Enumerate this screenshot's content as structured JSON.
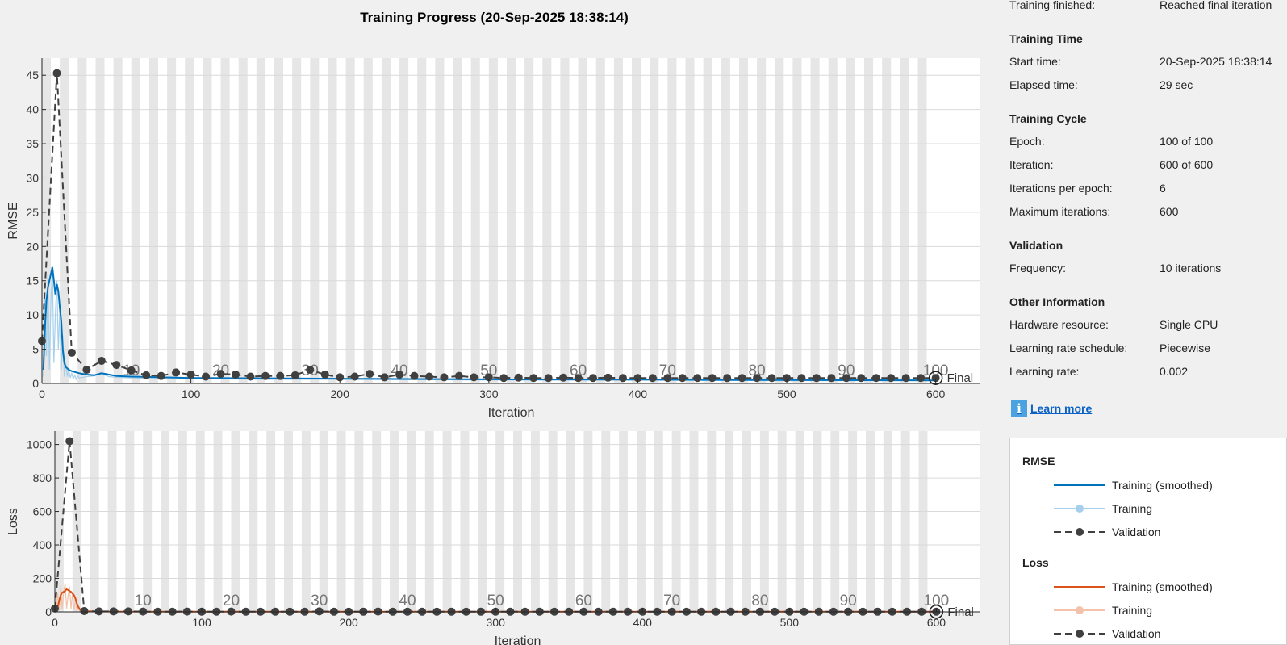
{
  "title": "Training Progress (20-Sep-2025 18:38:14)",
  "info": {
    "top_row": {
      "label": "Training finished:",
      "value": "Reached final iteration"
    },
    "sections": [
      {
        "heading": "Training Time",
        "rows": [
          {
            "label": "Start time:",
            "value": "20-Sep-2025 18:38:14"
          },
          {
            "label": "Elapsed time:",
            "value": "29 sec"
          }
        ]
      },
      {
        "heading": "Training Cycle",
        "rows": [
          {
            "label": "Epoch:",
            "value": "100 of 100"
          },
          {
            "label": "Iteration:",
            "value": "600 of 600"
          },
          {
            "label": "Iterations per epoch:",
            "value": "6"
          },
          {
            "label": "Maximum iterations:",
            "value": "600"
          }
        ]
      },
      {
        "heading": "Validation",
        "rows": [
          {
            "label": "Frequency:",
            "value": "10 iterations"
          }
        ]
      },
      {
        "heading": "Other Information",
        "rows": [
          {
            "label": "Hardware resource:",
            "value": "Single CPU"
          },
          {
            "label": "Learning rate schedule:",
            "value": "Piecewise"
          },
          {
            "label": "Learning rate:",
            "value": "0.002"
          }
        ]
      }
    ],
    "learn_more": "Learn more",
    "info_icon_glyph": "i"
  },
  "legend": {
    "groups": [
      {
        "title": "RMSE",
        "items": [
          {
            "label": "Training (smoothed)",
            "style": "solid",
            "color": "#0072bd"
          },
          {
            "label": "Training",
            "style": "marker",
            "color": "#a6cfeb"
          },
          {
            "label": "Validation",
            "style": "dashed-marker",
            "color": "#404040"
          }
        ]
      },
      {
        "title": "Loss",
        "items": [
          {
            "label": "Training (smoothed)",
            "style": "solid",
            "color": "#d95319"
          },
          {
            "label": "Training",
            "style": "marker",
            "color": "#f2c2ab"
          },
          {
            "label": "Validation",
            "style": "dashed-marker",
            "color": "#404040"
          }
        ]
      }
    ]
  },
  "chart_data": [
    {
      "type": "line",
      "ylabel": "RMSE",
      "xlabel": "Iteration",
      "xlim": [
        0,
        630
      ],
      "ylim": [
        0,
        47.5
      ],
      "xticks": [
        0,
        100,
        200,
        300,
        400,
        500,
        600
      ],
      "yticks": [
        0,
        5,
        10,
        15,
        20,
        25,
        30,
        35,
        40,
        45
      ],
      "iterations_per_epoch": 6,
      "epoch_labels": [
        10,
        20,
        30,
        40,
        50,
        60,
        70,
        80,
        90,
        100
      ],
      "final_label": "Final",
      "colors": {
        "smoothed": "#0072bd",
        "raw": "#a6cfeb",
        "validation": "#404040"
      },
      "series": [
        {
          "name": "Training (smoothed)",
          "x": [
            1,
            2,
            3,
            4,
            5,
            6,
            7,
            8,
            9,
            10,
            11,
            12,
            13,
            14,
            15,
            16,
            17,
            18,
            19,
            20,
            25,
            30,
            35,
            40,
            45,
            50,
            60,
            70,
            80,
            90,
            100,
            150,
            200,
            250,
            300,
            400,
            500,
            600
          ],
          "values": [
            2,
            8,
            12,
            14,
            15,
            16,
            17,
            15,
            13,
            14.5,
            13.5,
            11,
            9,
            5,
            3,
            2.4,
            2.2,
            2,
            1.9,
            1.8,
            1.5,
            1.3,
            1.2,
            1.5,
            1.3,
            1.1,
            1.0,
            0.95,
            0.9,
            0.85,
            0.8,
            0.75,
            0.7,
            0.65,
            0.6,
            0.55,
            0.5,
            0.45
          ]
        },
        {
          "name": "Training",
          "x": [
            1,
            2,
            3,
            4,
            5,
            6,
            7,
            8,
            9,
            10,
            11,
            12,
            13,
            14,
            15,
            16,
            17,
            18,
            19,
            20,
            21,
            22,
            23,
            24,
            25,
            30,
            35,
            40,
            45,
            50,
            60,
            80,
            100,
            150,
            200,
            300,
            400,
            500,
            600
          ],
          "values": [
            1,
            13,
            4,
            16,
            2,
            12,
            17,
            3,
            10,
            15,
            5,
            11,
            2,
            7,
            1,
            3,
            1,
            2,
            0.8,
            1.5,
            0.7,
            1.2,
            0.6,
            1.1,
            0.8,
            1.0,
            1.1,
            1.4,
            1.0,
            0.9,
            0.8,
            0.7,
            0.7,
            0.6,
            0.6,
            0.5,
            0.5,
            0.4,
            0.4
          ]
        },
        {
          "name": "Validation",
          "x": [
            0,
            10,
            20,
            30,
            40,
            50,
            60,
            70,
            80,
            90,
            100,
            110,
            120,
            130,
            140,
            150,
            160,
            170,
            180,
            190,
            200,
            210,
            220,
            230,
            240,
            250,
            260,
            270,
            280,
            290,
            300,
            310,
            320,
            330,
            340,
            350,
            360,
            370,
            380,
            390,
            400,
            410,
            420,
            430,
            440,
            450,
            460,
            470,
            480,
            490,
            500,
            510,
            520,
            530,
            540,
            550,
            560,
            570,
            580,
            590,
            600
          ],
          "values": [
            6.2,
            45.3,
            4.5,
            2.0,
            3.3,
            2.7,
            1.9,
            1.2,
            1.1,
            1.6,
            1.3,
            1.0,
            1.4,
            1.3,
            1.0,
            1.1,
            1.1,
            1.2,
            2.0,
            1.3,
            0.9,
            1.0,
            1.4,
            0.9,
            1.3,
            1.1,
            1.0,
            0.9,
            1.1,
            0.9,
            0.9,
            0.8,
            0.85,
            0.8,
            0.8,
            0.85,
            0.8,
            0.8,
            0.85,
            0.8,
            0.8,
            0.8,
            0.8,
            0.8,
            0.8,
            0.8,
            0.8,
            0.8,
            0.8,
            0.8,
            0.8,
            0.8,
            0.8,
            0.8,
            0.8,
            0.8,
            0.8,
            0.8,
            0.8,
            0.8,
            0.8
          ]
        }
      ]
    },
    {
      "type": "line",
      "ylabel": "Loss",
      "xlabel": "Iteration",
      "xlim": [
        0,
        630
      ],
      "ylim": [
        0,
        1080
      ],
      "xticks": [
        0,
        100,
        200,
        300,
        400,
        500,
        600
      ],
      "yticks": [
        0,
        200,
        400,
        600,
        800,
        1000
      ],
      "iterations_per_epoch": 6,
      "epoch_labels": [
        10,
        20,
        30,
        40,
        50,
        60,
        70,
        80,
        90,
        100
      ],
      "final_label": "Final",
      "colors": {
        "smoothed": "#d95319",
        "raw": "#f2c2ab",
        "validation": "#404040"
      },
      "series": [
        {
          "name": "Training (smoothed)",
          "x": [
            1,
            2,
            3,
            4,
            5,
            6,
            7,
            8,
            9,
            10,
            11,
            12,
            13,
            14,
            15,
            16,
            17,
            18,
            20,
            25,
            30,
            40,
            60,
            100,
            200,
            300,
            400,
            500,
            600
          ],
          "values": [
            5,
            30,
            70,
            100,
            115,
            120,
            125,
            135,
            130,
            125,
            120,
            110,
            100,
            80,
            50,
            30,
            15,
            8,
            5,
            3,
            2,
            2,
            1,
            1,
            1,
            1,
            1,
            1,
            1
          ]
        },
        {
          "name": "Training",
          "x": [
            1,
            2,
            3,
            4,
            5,
            6,
            7,
            8,
            9,
            10,
            11,
            12,
            13,
            14,
            15,
            16,
            17,
            18,
            19,
            20,
            22,
            25,
            30,
            40,
            60,
            100,
            200,
            300,
            400,
            500,
            600
          ],
          "values": [
            1,
            110,
            10,
            160,
            15,
            120,
            170,
            20,
            100,
            150,
            20,
            110,
            10,
            80,
            5,
            30,
            3,
            15,
            2,
            4,
            2,
            3,
            1,
            2,
            1,
            1,
            1,
            1,
            1,
            1,
            1
          ]
        },
        {
          "name": "Validation",
          "x": [
            0,
            10,
            20,
            30,
            40,
            50,
            60,
            70,
            80,
            90,
            100,
            110,
            120,
            130,
            140,
            150,
            160,
            170,
            180,
            190,
            200,
            210,
            220,
            230,
            240,
            250,
            260,
            270,
            280,
            290,
            300,
            310,
            320,
            330,
            340,
            350,
            360,
            370,
            380,
            390,
            400,
            410,
            420,
            430,
            440,
            450,
            460,
            470,
            480,
            490,
            500,
            510,
            520,
            530,
            540,
            550,
            560,
            570,
            580,
            590,
            600
          ],
          "values": [
            20,
            1020,
            5,
            3,
            3,
            3,
            2,
            1,
            1,
            2,
            1,
            1,
            2,
            1,
            1,
            1,
            1,
            1,
            3,
            1,
            1,
            1,
            2,
            1,
            1,
            1,
            1,
            1,
            1,
            1,
            1,
            1,
            1,
            1,
            1,
            1,
            1,
            1,
            1,
            1,
            1,
            1,
            1,
            1,
            1,
            1,
            1,
            1,
            1,
            1,
            1,
            1,
            1,
            1,
            1,
            1,
            1,
            1,
            1,
            1,
            1
          ]
        }
      ]
    }
  ]
}
